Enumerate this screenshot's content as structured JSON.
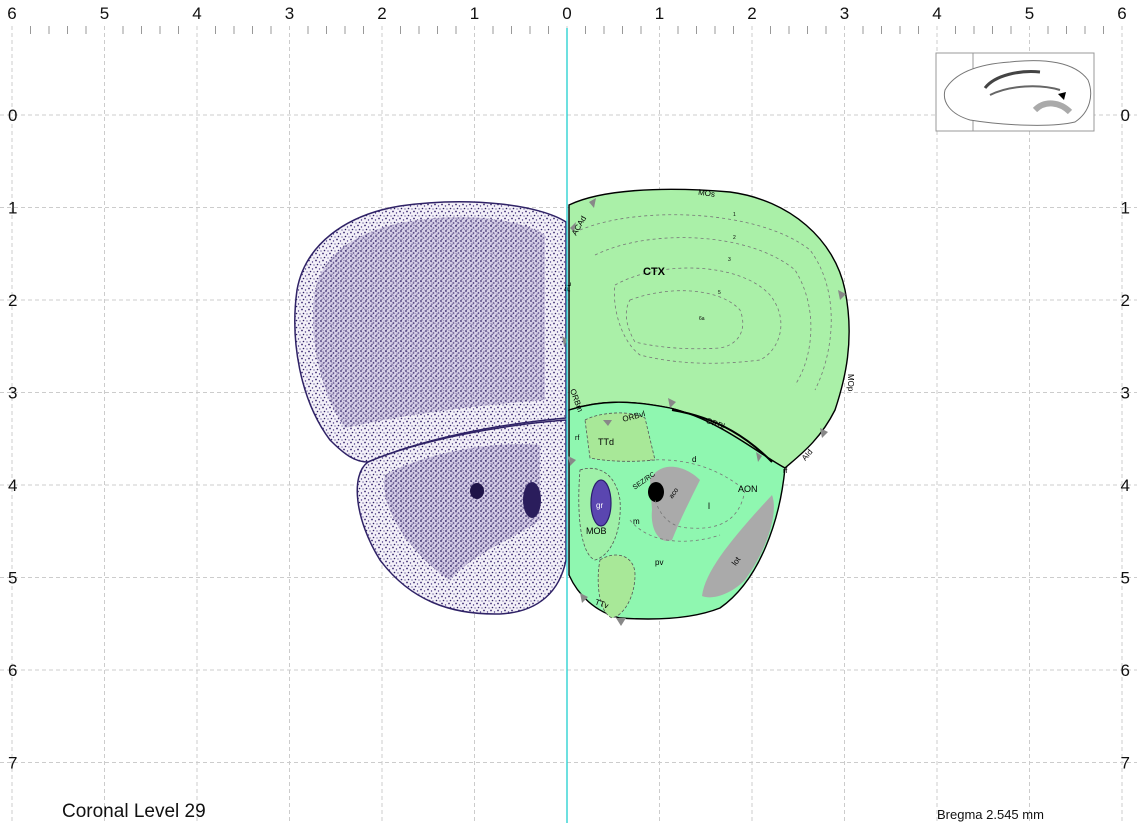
{
  "axes": {
    "top_ticks": [
      "6",
      "5",
      "4",
      "3",
      "2",
      "1",
      "0",
      "1",
      "2",
      "3",
      "4",
      "5",
      "6"
    ],
    "side_ticks": [
      "0",
      "1",
      "2",
      "3",
      "4",
      "5",
      "6",
      "7"
    ]
  },
  "title": "Coronal Level 29",
  "bregma": "Bregma 2.545 mm",
  "regions": {
    "ctx": "CTX",
    "mos": "MOs",
    "mop": "MOp",
    "acad": "ACAd",
    "pl": "PL",
    "orbm": "ORBm",
    "orbvl": "ORBvl",
    "orbl": "ORBl",
    "aid": "AId",
    "rf_left": "rf",
    "rf_right": "rf",
    "ttd": "TTd",
    "ttv": "TTv",
    "sez_rc": "SEZ/RC",
    "aco": "aco",
    "aon": "AON",
    "d": "d",
    "l": "l",
    "m": "m",
    "pv": "pv",
    "lot": "lot",
    "mob": "MOB",
    "gr": "gr",
    "layer1": "1",
    "layer2": "2",
    "layer3": "3",
    "layer5": "5",
    "layer6a": "6a"
  },
  "colors": {
    "cortex_fill": "#aaf0a8",
    "aon_fill": "#8ff7b0",
    "olfactory_fill": "#8ef0a0",
    "fiber_gray": "#aaaaaa",
    "midline": "#2fd3d3",
    "nissl_stain": "#3b2a70",
    "gr_fill": "#5a46b0"
  }
}
